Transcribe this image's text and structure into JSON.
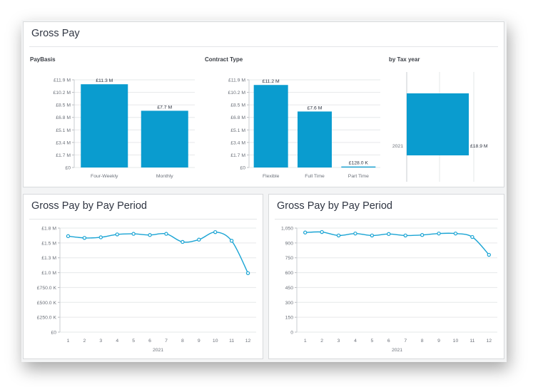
{
  "top_panel": {
    "title": "Gross Pay"
  },
  "bottom_left_panel": {
    "title": "Gross Pay by Pay Period"
  },
  "bottom_right_panel": {
    "title": "Gross Pay by Pay Period"
  },
  "colors": {
    "bar": "#0a9ccf",
    "line": "#1aa4d4",
    "grid": "#e6e8ea",
    "axis_text": "#6b7079",
    "label_text": "#2f3542"
  },
  "chart_data": [
    {
      "id": "paybasis",
      "type": "bar",
      "title": "PayBasis",
      "categories": [
        "Four-Weekly",
        "Monthly"
      ],
      "values": [
        11.3,
        7.7
      ],
      "data_labels": [
        "£11.3 M",
        "£7.7 M"
      ],
      "yticks": [
        "£0",
        "£1.7 M",
        "£3.4 M",
        "£5.1 M",
        "£6.8 M",
        "£8.5 M",
        "£10.2 M",
        "£11.9 M"
      ],
      "ylim": [
        0,
        11.9
      ],
      "y_unit": "£ M"
    },
    {
      "id": "contract_type",
      "type": "bar",
      "title": "Contract Type",
      "categories": [
        "Flexible",
        "Full Time",
        "Part Time"
      ],
      "values": [
        11.2,
        7.6,
        0.128
      ],
      "data_labels": [
        "£11.2 M",
        "£7.6 M",
        "£128.0 K"
      ],
      "yticks": [
        "£0",
        "£1.7 M",
        "£3.4 M",
        "£5.1 M",
        "£6.8 M",
        "£8.5 M",
        "£10.2 M",
        "£11.9 M"
      ],
      "ylim": [
        0,
        11.9
      ],
      "y_unit": "£ M"
    },
    {
      "id": "tax_year",
      "type": "bar",
      "orientation": "horizontal",
      "title": "by Tax year",
      "categories": [
        "2021"
      ],
      "values": [
        18.9
      ],
      "data_labels": [
        "£18.9 M"
      ],
      "y_unit": "£ M"
    },
    {
      "id": "gross_pay_period_currency",
      "type": "line",
      "x": [
        1,
        2,
        3,
        4,
        5,
        6,
        7,
        8,
        9,
        10,
        11,
        12
      ],
      "xlabel": "2021",
      "values": [
        1.66,
        1.63,
        1.64,
        1.69,
        1.7,
        1.68,
        1.7,
        1.56,
        1.6,
        1.73,
        1.58,
        1.02
      ],
      "yticks": [
        "£0",
        "£250.0 K",
        "£500.0 K",
        "£750.0 K",
        "£1.0 M",
        "£1.3 M",
        "£1.5 M",
        "£1.8 M"
      ],
      "ylim": [
        0,
        1.8
      ],
      "y_unit": "£ M"
    },
    {
      "id": "gross_pay_period_count",
      "type": "line",
      "x": [
        1,
        2,
        3,
        4,
        5,
        6,
        7,
        8,
        9,
        10,
        11,
        12
      ],
      "xlabel": "2021",
      "values": [
        1005,
        1010,
        975,
        995,
        975,
        990,
        975,
        980,
        995,
        995,
        960,
        780
      ],
      "yticks": [
        "0",
        "150",
        "300",
        "450",
        "600",
        "750",
        "900",
        "1,050"
      ],
      "ylim": [
        0,
        1050
      ]
    }
  ]
}
